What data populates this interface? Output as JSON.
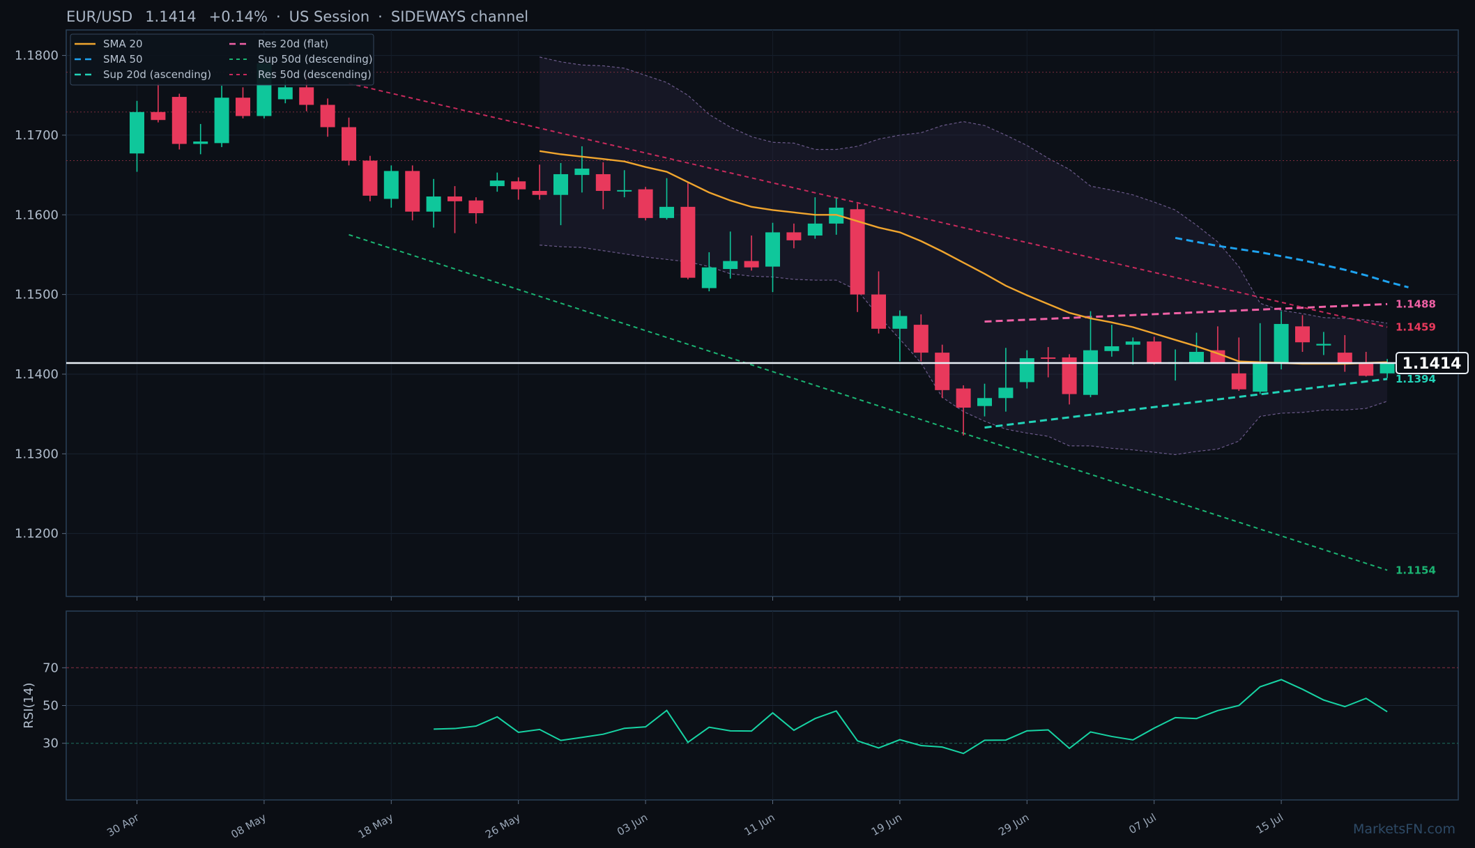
{
  "header": {
    "symbol": "EUR/USD",
    "price": "1.1414",
    "change": "+0.14%",
    "session": "US Session",
    "regime": "SIDEWAYS channel",
    "sep": "·"
  },
  "watermark": "MarketsFN.com",
  "colors": {
    "bg": "#0b0e14",
    "panel": "#0d1119",
    "frame": "#2a4058",
    "up": "#0fc79b",
    "down": "#e8395c",
    "sma20": "#f0a52e",
    "sma50": "#1ea3f0",
    "sup20": "#22d3b8",
    "res20": "#f061a6",
    "sup50": "#1bb573",
    "res50": "#c82a5c",
    "rsi": "#17d4a4",
    "band": "#6b5a8a",
    "price_line": "#e8eef5"
  },
  "chart_data": [
    {
      "type": "candlestick",
      "title": "EUR/USD 1.1414 +0.14% · US Session · SIDEWAYS channel",
      "ylim": [
        1.1121,
        1.1832
      ],
      "y_ticks": [
        1.12,
        1.13,
        1.14,
        1.15,
        1.16,
        1.17,
        1.18
      ],
      "y_tick_labels": [
        "1.1200",
        "1.1300",
        "1.1400",
        "1.1500",
        "1.1600",
        "1.1700",
        "1.1800"
      ],
      "x_tick_labels": [
        {
          "label": "30 Apr",
          "i": 0
        },
        {
          "label": "08 May",
          "i": 6
        },
        {
          "label": "18 May",
          "i": 12
        },
        {
          "label": "26 May",
          "i": 18
        },
        {
          "label": "03 Jun",
          "i": 24
        },
        {
          "label": "11 Jun",
          "i": 30
        },
        {
          "label": "19 Jun",
          "i": 36
        },
        {
          "label": "29 Jun",
          "i": 42
        },
        {
          "label": "07 Jul",
          "i": 48
        },
        {
          "label": "15 Jul",
          "i": 54
        }
      ],
      "candles": [
        {
          "o": 1.1677,
          "h": 1.1743,
          "l": 1.1654,
          "c": 1.1729
        },
        {
          "o": 1.1729,
          "h": 1.1766,
          "l": 1.1716,
          "c": 1.1719
        },
        {
          "o": 1.1748,
          "h": 1.1752,
          "l": 1.1682,
          "c": 1.1689
        },
        {
          "o": 1.1689,
          "h": 1.1714,
          "l": 1.1676,
          "c": 1.1692
        },
        {
          "o": 1.169,
          "h": 1.1762,
          "l": 1.1685,
          "c": 1.1747
        },
        {
          "o": 1.1747,
          "h": 1.176,
          "l": 1.1721,
          "c": 1.1724
        },
        {
          "o": 1.1724,
          "h": 1.1795,
          "l": 1.1721,
          "c": 1.179
        },
        {
          "o": 1.1745,
          "h": 1.177,
          "l": 1.174,
          "c": 1.176
        },
        {
          "o": 1.176,
          "h": 1.1775,
          "l": 1.173,
          "c": 1.1738
        },
        {
          "o": 1.1738,
          "h": 1.1746,
          "l": 1.1698,
          "c": 1.171
        },
        {
          "o": 1.171,
          "h": 1.1722,
          "l": 1.1662,
          "c": 1.1668
        },
        {
          "o": 1.1668,
          "h": 1.1674,
          "l": 1.1617,
          "c": 1.1624
        },
        {
          "o": 1.162,
          "h": 1.1662,
          "l": 1.1609,
          "c": 1.1655
        },
        {
          "o": 1.1655,
          "h": 1.1662,
          "l": 1.1593,
          "c": 1.1604
        },
        {
          "o": 1.1604,
          "h": 1.1645,
          "l": 1.1584,
          "c": 1.1623
        },
        {
          "o": 1.1623,
          "h": 1.1636,
          "l": 1.1577,
          "c": 1.1617
        },
        {
          "o": 1.1618,
          "h": 1.1622,
          "l": 1.1589,
          "c": 1.1602
        },
        {
          "o": 1.1636,
          "h": 1.1653,
          "l": 1.1629,
          "c": 1.1643
        },
        {
          "o": 1.1642,
          "h": 1.1647,
          "l": 1.1619,
          "c": 1.1632
        },
        {
          "o": 1.163,
          "h": 1.1663,
          "l": 1.1619,
          "c": 1.1625
        },
        {
          "o": 1.1625,
          "h": 1.1665,
          "l": 1.1587,
          "c": 1.1651
        },
        {
          "o": 1.165,
          "h": 1.1686,
          "l": 1.1628,
          "c": 1.1658
        },
        {
          "o": 1.1651,
          "h": 1.1666,
          "l": 1.1607,
          "c": 1.163
        },
        {
          "o": 1.1631,
          "h": 1.1656,
          "l": 1.1622,
          "c": 1.1631
        },
        {
          "o": 1.1632,
          "h": 1.1635,
          "l": 1.1593,
          "c": 1.1596
        },
        {
          "o": 1.1596,
          "h": 1.1646,
          "l": 1.1594,
          "c": 1.161
        },
        {
          "o": 1.161,
          "h": 1.164,
          "l": 1.1519,
          "c": 1.1521
        },
        {
          "o": 1.1508,
          "h": 1.1553,
          "l": 1.1504,
          "c": 1.1534
        },
        {
          "o": 1.1532,
          "h": 1.1579,
          "l": 1.152,
          "c": 1.1542
        },
        {
          "o": 1.1542,
          "h": 1.1574,
          "l": 1.153,
          "c": 1.1534
        },
        {
          "o": 1.1535,
          "h": 1.159,
          "l": 1.1503,
          "c": 1.1578
        },
        {
          "o": 1.1578,
          "h": 1.1589,
          "l": 1.1558,
          "c": 1.1568
        },
        {
          "o": 1.1574,
          "h": 1.1622,
          "l": 1.157,
          "c": 1.1589
        },
        {
          "o": 1.1589,
          "h": 1.1621,
          "l": 1.1575,
          "c": 1.1609
        },
        {
          "o": 1.1607,
          "h": 1.1614,
          "l": 1.1478,
          "c": 1.15
        },
        {
          "o": 1.15,
          "h": 1.1529,
          "l": 1.1451,
          "c": 1.1457
        },
        {
          "o": 1.1457,
          "h": 1.148,
          "l": 1.1416,
          "c": 1.1473
        },
        {
          "o": 1.1462,
          "h": 1.1475,
          "l": 1.1416,
          "c": 1.1427
        },
        {
          "o": 1.1427,
          "h": 1.1437,
          "l": 1.137,
          "c": 1.138
        },
        {
          "o": 1.1382,
          "h": 1.1386,
          "l": 1.1323,
          "c": 1.1358
        },
        {
          "o": 1.136,
          "h": 1.1388,
          "l": 1.1347,
          "c": 1.137
        },
        {
          "o": 1.137,
          "h": 1.1433,
          "l": 1.1353,
          "c": 1.1383
        },
        {
          "o": 1.139,
          "h": 1.143,
          "l": 1.1382,
          "c": 1.142
        },
        {
          "o": 1.1421,
          "h": 1.1434,
          "l": 1.1396,
          "c": 1.142
        },
        {
          "o": 1.1421,
          "h": 1.1425,
          "l": 1.1362,
          "c": 1.1375
        },
        {
          "o": 1.1374,
          "h": 1.1479,
          "l": 1.1371,
          "c": 1.143
        },
        {
          "o": 1.1429,
          "h": 1.1462,
          "l": 1.1422,
          "c": 1.1435
        },
        {
          "o": 1.1437,
          "h": 1.1446,
          "l": 1.1412,
          "c": 1.1441
        },
        {
          "o": 1.1441,
          "h": 1.1447,
          "l": 1.1412,
          "c": 1.1414
        },
        {
          "o": 1.1413,
          "h": 1.1431,
          "l": 1.1392,
          "c": 1.1415
        },
        {
          "o": 1.1415,
          "h": 1.1452,
          "l": 1.1413,
          "c": 1.1428
        },
        {
          "o": 1.143,
          "h": 1.146,
          "l": 1.1413,
          "c": 1.1414
        },
        {
          "o": 1.1401,
          "h": 1.1446,
          "l": 1.1379,
          "c": 1.1381
        },
        {
          "o": 1.1378,
          "h": 1.1464,
          "l": 1.1375,
          "c": 1.1413
        },
        {
          "o": 1.1413,
          "h": 1.1479,
          "l": 1.1406,
          "c": 1.1463
        },
        {
          "o": 1.146,
          "h": 1.1474,
          "l": 1.1428,
          "c": 1.144
        },
        {
          "o": 1.1436,
          "h": 1.1453,
          "l": 1.1424,
          "c": 1.1438
        },
        {
          "o": 1.1427,
          "h": 1.1449,
          "l": 1.1403,
          "c": 1.1414
        },
        {
          "o": 1.1414,
          "h": 1.1428,
          "l": 1.1397,
          "c": 1.1398
        },
        {
          "o": 1.1401,
          "h": 1.1419,
          "l": 1.1395,
          "c": 1.1414
        }
      ],
      "sma20": {
        "start": 19,
        "values": [
          1.168,
          1.1676,
          1.1673,
          1.167,
          1.1667,
          1.166,
          1.1654,
          1.1641,
          1.1628,
          1.1618,
          1.161,
          1.1606,
          1.1603,
          1.16,
          1.16,
          1.1592,
          1.1584,
          1.1578,
          1.1567,
          1.1554,
          1.154,
          1.1526,
          1.1511,
          1.1499,
          1.1488,
          1.1477,
          1.147,
          1.1465,
          1.1459,
          1.1451,
          1.1443,
          1.1435,
          1.1426,
          1.1416,
          1.1415,
          1.1414,
          1.1413,
          1.1413,
          1.1413,
          1.1414,
          1.1415
        ]
      },
      "sma50": {
        "start": 49,
        "values": [
          1.1571,
          1.1566,
          1.1561,
          1.1557,
          1.1553,
          1.1548,
          1.1543,
          1.1537,
          1.1531,
          1.1524,
          1.1516,
          1.1509
        ]
      },
      "bollinger": {
        "start": 19,
        "upper": [
          1.1798,
          1.1792,
          1.1788,
          1.1787,
          1.1784,
          1.1775,
          1.1766,
          1.175,
          1.1726,
          1.171,
          1.1698,
          1.1691,
          1.169,
          1.1682,
          1.1682,
          1.1686,
          1.1695,
          1.17,
          1.1703,
          1.1712,
          1.1717,
          1.1712,
          1.17,
          1.1687,
          1.1671,
          1.1657,
          1.1636,
          1.1631,
          1.1625,
          1.1616,
          1.1606,
          1.1587,
          1.1566,
          1.1535,
          1.1489,
          1.148,
          1.1476,
          1.1471,
          1.147,
          1.1468,
          1.1464
        ],
        "lower": [
          1.1562,
          1.156,
          1.1559,
          1.1555,
          1.1551,
          1.1547,
          1.1544,
          1.1541,
          1.1535,
          1.1526,
          1.1523,
          1.1522,
          1.1519,
          1.1518,
          1.1518,
          1.1505,
          1.1473,
          1.1444,
          1.1414,
          1.1371,
          1.1353,
          1.1341,
          1.1331,
          1.1326,
          1.1322,
          1.131,
          1.131,
          1.1307,
          1.1305,
          1.1302,
          1.1299,
          1.1303,
          1.1306,
          1.1316,
          1.1347,
          1.1351,
          1.1352,
          1.1355,
          1.1355,
          1.1357,
          1.1366
        ]
      },
      "trendlines": [
        {
          "name": "Res 20d (flat)",
          "x0": 40,
          "y0": 1.1466,
          "x1": 59,
          "y1": 1.1488
        },
        {
          "name": "Sup 20d (ascending)",
          "x0": 40,
          "y0": 1.1333,
          "x1": 59,
          "y1": 1.1394
        },
        {
          "name": "Sup 50d (descending)",
          "x0": 10,
          "y0": 1.1575,
          "x1": 59,
          "y1": 1.1154
        },
        {
          "name": "Res 50d (descending)",
          "x0": 10,
          "y0": 1.1765,
          "x1": 59,
          "y1": 1.1459
        }
      ],
      "level_labels": [
        {
          "text": "1.1488",
          "y": 1.1488,
          "color": "#f061a6"
        },
        {
          "text": "1.1459",
          "y": 1.1459,
          "color": "#e8395c"
        },
        {
          "text": "1.1394",
          "y": 1.1394,
          "color": "#22d3b8"
        },
        {
          "text": "1.1154",
          "y": 1.1154,
          "color": "#1bb573"
        }
      ],
      "horizontal_levels": [
        1.1779,
        1.1729,
        1.1668
      ],
      "last_price": {
        "value": 1.1414,
        "label": "1.1414"
      },
      "legend": {
        "placement": "top-left",
        "items": [
          {
            "label": "SMA 20",
            "color": "#f0a52e",
            "dash": "solid"
          },
          {
            "label": "SMA 50",
            "color": "#1ea3f0",
            "dash": "dash"
          },
          {
            "label": "Sup 20d (ascending)",
            "color": "#22d3b8",
            "dash": "dash"
          },
          {
            "label": "Res 20d (flat)",
            "color": "#f061a6",
            "dash": "dash"
          },
          {
            "label": "Sup 50d (descending)",
            "color": "#1bb573",
            "dash": "fine"
          },
          {
            "label": "Res 50d (descending)",
            "color": "#c82a5c",
            "dash": "fine"
          }
        ]
      }
    },
    {
      "type": "line",
      "ylabel": "RSI(14)",
      "ylim": [
        0,
        100
      ],
      "y_ticks": [
        30,
        50,
        70
      ],
      "y_tick_labels": [
        "30",
        "50",
        "70"
      ],
      "overbought": 70,
      "oversold": 30,
      "start": 14,
      "values": [
        37.5,
        37.8,
        39.1,
        44.0,
        35.8,
        37.3,
        31.5,
        33.1,
        34.8,
        37.9,
        38.7,
        47.4,
        30.5,
        38.5,
        36.6,
        36.5,
        46.1,
        36.9,
        43.1,
        47.1,
        31.3,
        27.5,
        31.9,
        28.8,
        28.0,
        24.6,
        31.6,
        31.7,
        36.6,
        37.1,
        27.3,
        36.0,
        33.6,
        31.8,
        38.0,
        43.6,
        43.1,
        47.3,
        50.0,
        59.9,
        63.7,
        58.6,
        52.9,
        49.4,
        53.8,
        46.7
      ]
    }
  ]
}
